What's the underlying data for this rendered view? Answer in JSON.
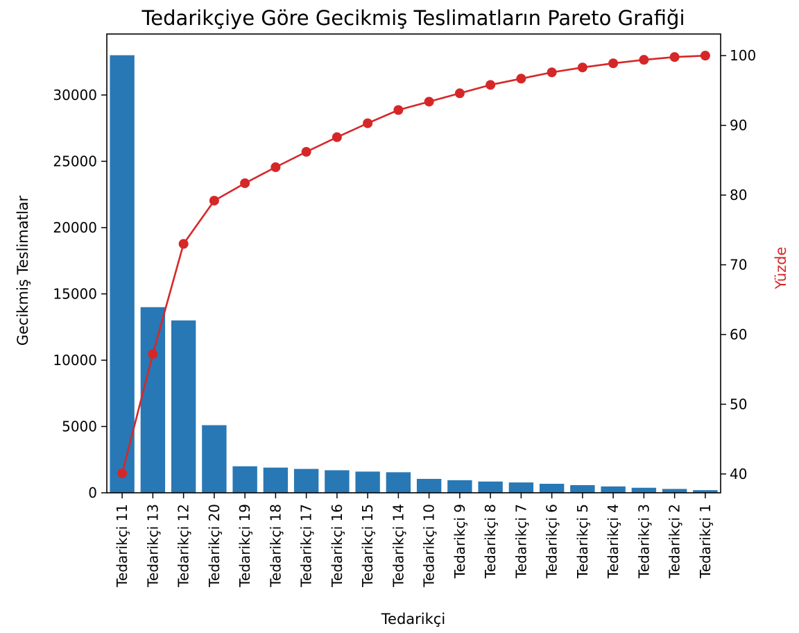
{
  "chart_data": {
    "type": "bar",
    "title": "Tedarikçiye Göre Gecikmiş Teslimatların Pareto Grafiği",
    "xlabel": "Tedarikçi",
    "ylabel": "Gecikmiş Teslimatlar",
    "ylabel_right": "Yüzde",
    "categories": [
      "Tedarikçi 11",
      "Tedarikçi 13",
      "Tedarikçi 12",
      "Tedarikçi 20",
      "Tedarikçi 19",
      "Tedarikçi 18",
      "Tedarikçi 17",
      "Tedarikçi 16",
      "Tedarikçi 15",
      "Tedarikçi 14",
      "Tedarikçi 10",
      "Tedarikçi 9",
      "Tedarikçi 8",
      "Tedarikçi 7",
      "Tedarikçi 6",
      "Tedarikçi 5",
      "Tedarikçi 4",
      "Tedarikçi 3",
      "Tedarikçi 2",
      "Tedarikçi 1"
    ],
    "values": [
      33000,
      14000,
      13000,
      5100,
      2000,
      1900,
      1800,
      1700,
      1600,
      1550,
      1050,
      950,
      850,
      780,
      680,
      580,
      480,
      380,
      290,
      200
    ],
    "cumulative_percent": [
      40.1,
      57.2,
      73.0,
      79.2,
      81.7,
      84.0,
      86.2,
      88.3,
      90.3,
      92.2,
      93.4,
      94.6,
      95.8,
      96.7,
      97.6,
      98.3,
      98.9,
      99.4,
      99.8,
      100.0
    ],
    "ylim": [
      0,
      34600
    ],
    "ylim_right": [
      37.3,
      103.1
    ],
    "yticks": [
      0,
      5000,
      10000,
      15000,
      20000,
      25000,
      30000
    ],
    "yticks_right": [
      40,
      50,
      60,
      70,
      80,
      90,
      100
    ],
    "bar_color": "#2878b5",
    "line_color": "#d62728",
    "ylabel_right_color": "#d62728",
    "grid": false
  }
}
